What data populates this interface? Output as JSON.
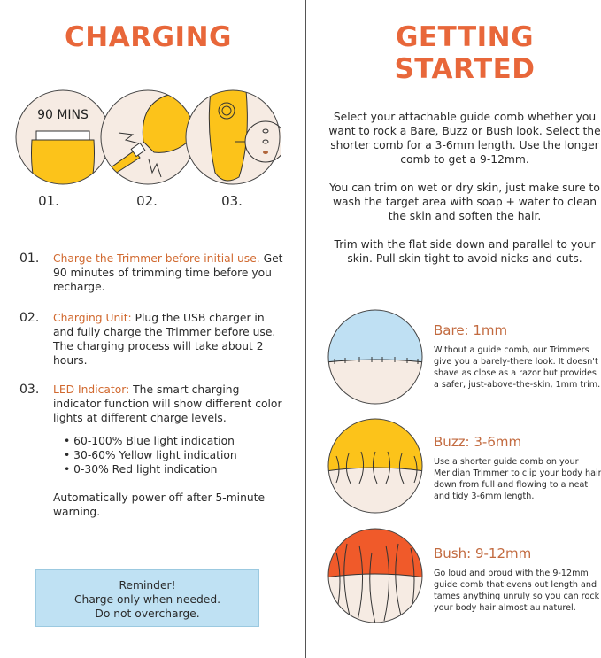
{
  "charging": {
    "title": "CHARGING",
    "illustration_text": "90 MINS",
    "step_labels": [
      "01.",
      "02.",
      "03."
    ],
    "items": [
      {
        "num": "01.",
        "highlight": "Charge the Trimmer before initial use.",
        "text": " Get 90 minutes of trimming time before you recharge."
      },
      {
        "num": "02.",
        "highlight": "Charging Unit:",
        "text": " Plug the USB charger in and fully charge the Trimmer before use. The charging process will take about 2 hours."
      },
      {
        "num": "03.",
        "highlight": "LED Indicator:",
        "text": " The smart charging indicator function will show different color lights at different charge levels."
      }
    ],
    "bullets": [
      "60-100% Blue light indication",
      "30-60% Yellow light indication",
      "0-30% Red light indication"
    ],
    "auto_off": "Automatically power off after 5-minute warning.",
    "reminder": [
      "Reminder!",
      "Charge only when needed.",
      "Do not overcharge."
    ]
  },
  "getting_started": {
    "title_line1": "GETTING",
    "title_line2": "STARTED",
    "paragraphs": [
      "Select your attachable guide comb whether you want to rock a Bare, Buzz or Bush look. Select the shorter comb for a 3-6mm length. Use the longer comb to get a 9-12mm.",
      "You can trim on wet or dry skin, just make sure to wash the target area with soap + water to clean the skin and soften the hair.",
      "Trim with the flat side down and parallel to your skin. Pull skin tight to avoid nicks and cuts."
    ],
    "styles": [
      {
        "title": "Bare: 1mm",
        "text": "Without a guide comb, our Trimmers give you a barely-there look. It doesn't shave as close as a razor but provides a safer, just-above-the-skin, 1mm trim.",
        "color": "#bfe0f3"
      },
      {
        "title": "Buzz: 3-6mm",
        "text": "Use a shorter guide comb on your Meridian Trimmer to clip your body hair down from full and flowing to a neat and tidy 3-6mm length.",
        "color": "#fcc31a"
      },
      {
        "title": "Bush: 9-12mm",
        "text": "Go loud and proud with the 9-12mm guide comb that evens out length and tames anything unruly so you can rock your body hair almost au naturel.",
        "color": "#f05a2a"
      }
    ]
  },
  "colors": {
    "accent": "#e8673a",
    "yellow": "#fcc31a",
    "skin": "#f6ebe3",
    "reminder_bg": "#bfe1f3"
  }
}
